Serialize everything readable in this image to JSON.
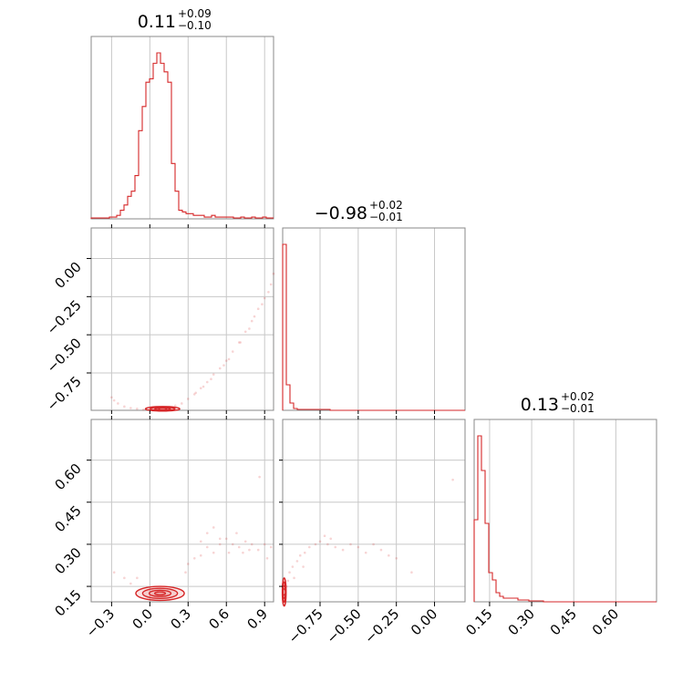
{
  "chart_data": {
    "type": "corner",
    "color": "#d62728",
    "grid": true,
    "parameters": [
      {
        "title_value": "0.11",
        "title_plus": "+0.09",
        "title_minus": "−0.10",
        "range": [
          -0.46,
          0.97
        ],
        "ticks": [
          "−0.3",
          "0.0",
          "0.3",
          "0.6",
          "0.9"
        ],
        "tick_values": [
          -0.3,
          0.0,
          0.3,
          0.6,
          0.9
        ],
        "grid_values": [
          -0.3,
          0.0,
          0.3,
          0.6,
          0.9
        ]
      },
      {
        "title_value": "−0.98",
        "title_plus": "+0.02",
        "title_minus": "−0.01",
        "range": [
          -0.995,
          0.2
        ],
        "ticks": [
          "−0.75",
          "−0.50",
          "−0.25",
          "0.00"
        ],
        "tick_values": [
          -0.75,
          -0.5,
          -0.25,
          0.0
        ],
        "y_ticks": [
          "0.00",
          "−0.25",
          "−0.50",
          "−0.75"
        ],
        "y_tick_values": [
          0.0,
          -0.25,
          -0.5,
          -0.75
        ],
        "grid_values": [
          -0.75,
          -0.5,
          -0.25,
          0.0
        ]
      },
      {
        "title_value": "0.13",
        "title_plus": "+0.02",
        "title_minus": "−0.01",
        "range": [
          0.095,
          0.745
        ],
        "ticks": [
          "0.15",
          "0.30",
          "0.45",
          "0.60"
        ],
        "tick_values": [
          0.15,
          0.3,
          0.45,
          0.6
        ],
        "y_ticks": [
          "0.60",
          "0.45",
          "0.30",
          "0.15"
        ],
        "y_tick_values": [
          0.6,
          0.45,
          0.3,
          0.15
        ],
        "grid_values": [
          0.15,
          0.3,
          0.45,
          0.6
        ]
      }
    ],
    "histograms": [
      {
        "param": 0,
        "bin_start": -0.46,
        "bin_width": 0.0286,
        "counts": [
          0.005,
          0.005,
          0.005,
          0.005,
          0.005,
          0.01,
          0.01,
          0.02,
          0.05,
          0.08,
          0.13,
          0.16,
          0.25,
          0.51,
          0.65,
          0.79,
          0.81,
          0.9,
          0.96,
          0.9,
          0.85,
          0.79,
          0.32,
          0.16,
          0.05,
          0.04,
          0.03,
          0.03,
          0.02,
          0.02,
          0.02,
          0.01,
          0.01,
          0.02,
          0.01,
          0.01,
          0.01,
          0.01,
          0.01,
          0.005,
          0.005,
          0.01,
          0.005,
          0.005,
          0.01,
          0.005,
          0.005,
          0.01,
          0.005,
          0.005
        ]
      },
      {
        "param": 1,
        "bin_start": -0.995,
        "bin_width": 0.0239,
        "counts": [
          0.91,
          0.14,
          0.04,
          0.01,
          0.005,
          0.005,
          0.005,
          0.005,
          0.005,
          0.005,
          0.005,
          0.005,
          0.005,
          0,
          0,
          0,
          0,
          0,
          0,
          0,
          0,
          0,
          0,
          0,
          0,
          0,
          0,
          0,
          0,
          0,
          0,
          0,
          0,
          0,
          0,
          0,
          0,
          0,
          0,
          0,
          0,
          0,
          0,
          0,
          0,
          0,
          0,
          0,
          0,
          0
        ]
      },
      {
        "param": 2,
        "bin_start": 0.095,
        "bin_width": 0.013,
        "counts": [
          0.45,
          0.91,
          0.72,
          0.43,
          0.16,
          0.12,
          0.05,
          0.03,
          0.02,
          0.02,
          0.02,
          0.02,
          0.01,
          0.01,
          0.01,
          0.005,
          0.005,
          0.005,
          0.005,
          0,
          0,
          0,
          0,
          0,
          0,
          0,
          0,
          0,
          0,
          0,
          0,
          0,
          0,
          0,
          0,
          0,
          0,
          0,
          0,
          0,
          0,
          0,
          0,
          0,
          0,
          0,
          0,
          0,
          0,
          0
        ]
      }
    ],
    "scatter_2d": [
      {
        "x_param": 0,
        "y_param": 1,
        "points": [
          [
            -0.3,
            -0.91
          ],
          [
            -0.28,
            -0.93
          ],
          [
            -0.25,
            -0.95
          ],
          [
            -0.2,
            -0.97
          ],
          [
            -0.15,
            -0.98
          ],
          [
            -0.1,
            -0.985
          ],
          [
            -0.05,
            -0.99
          ],
          [
            0.0,
            -0.99
          ],
          [
            0.05,
            -0.985
          ],
          [
            0.1,
            -0.98
          ],
          [
            0.15,
            -0.975
          ],
          [
            0.2,
            -0.965
          ],
          [
            0.25,
            -0.95
          ],
          [
            0.3,
            -0.92
          ],
          [
            0.35,
            -0.89
          ],
          [
            0.4,
            -0.85
          ],
          [
            0.45,
            -0.81
          ],
          [
            0.5,
            -0.76
          ],
          [
            0.55,
            -0.72
          ],
          [
            0.6,
            -0.67
          ],
          [
            0.65,
            -0.61
          ],
          [
            0.7,
            -0.55
          ],
          [
            0.75,
            -0.48
          ],
          [
            0.8,
            -0.41
          ],
          [
            0.85,
            -0.33
          ],
          [
            0.9,
            -0.26
          ],
          [
            0.95,
            -0.17
          ],
          [
            0.97,
            -0.1
          ],
          [
            0.62,
            -0.66
          ],
          [
            0.71,
            -0.55
          ],
          [
            0.82,
            -0.38
          ],
          [
            0.88,
            -0.3
          ],
          [
            0.93,
            -0.22
          ],
          [
            0.78,
            -0.46
          ],
          [
            0.58,
            -0.7
          ],
          [
            0.48,
            -0.79
          ],
          [
            0.36,
            -0.88
          ],
          [
            0.42,
            -0.84
          ]
        ],
        "contour_center": [
          0.1,
          -0.985
        ],
        "contour_x": [
          -0.05,
          0.22
        ],
        "contour_y": [
          -0.995,
          -0.965
        ]
      },
      {
        "x_param": 0,
        "y_param": 2,
        "points": [
          [
            -0.28,
            0.2
          ],
          [
            -0.2,
            0.18
          ],
          [
            -0.15,
            0.16
          ],
          [
            0.3,
            0.23
          ],
          [
            0.35,
            0.25
          ],
          [
            0.4,
            0.26
          ],
          [
            0.45,
            0.29
          ],
          [
            0.5,
            0.27
          ],
          [
            0.55,
            0.3
          ],
          [
            0.6,
            0.32
          ],
          [
            0.65,
            0.3
          ],
          [
            0.7,
            0.29
          ],
          [
            0.75,
            0.31
          ],
          [
            0.8,
            0.3
          ],
          [
            0.85,
            0.28
          ],
          [
            0.9,
            0.3
          ],
          [
            0.95,
            0.29
          ],
          [
            0.45,
            0.34
          ],
          [
            0.55,
            0.32
          ],
          [
            0.68,
            0.34
          ],
          [
            0.86,
            0.54
          ],
          [
            0.4,
            0.31
          ],
          [
            0.62,
            0.27
          ],
          [
            0.73,
            0.27
          ],
          [
            0.28,
            0.2
          ],
          [
            -0.1,
            0.18
          ],
          [
            0.5,
            0.36
          ],
          [
            0.78,
            0.28
          ],
          [
            0.92,
            0.25
          ]
        ],
        "contour_center": [
          0.08,
          0.125
        ],
        "contour_x": [
          -0.1,
          0.28
        ],
        "contour_y": [
          0.11,
          0.16
        ]
      },
      {
        "x_param": 1,
        "y_param": 2,
        "points": [
          [
            -0.97,
            0.15
          ],
          [
            -0.96,
            0.17
          ],
          [
            -0.95,
            0.2
          ],
          [
            -0.93,
            0.22
          ],
          [
            -0.9,
            0.24
          ],
          [
            -0.88,
            0.26
          ],
          [
            -0.85,
            0.27
          ],
          [
            -0.82,
            0.29
          ],
          [
            -0.78,
            0.3
          ],
          [
            -0.75,
            0.31
          ],
          [
            -0.7,
            0.3
          ],
          [
            -0.65,
            0.29
          ],
          [
            -0.6,
            0.28
          ],
          [
            -0.55,
            0.3
          ],
          [
            -0.5,
            0.29
          ],
          [
            -0.45,
            0.27
          ],
          [
            -0.4,
            0.3
          ],
          [
            -0.35,
            0.28
          ],
          [
            -0.3,
            0.26
          ],
          [
            -0.25,
            0.25
          ],
          [
            -0.15,
            0.2
          ],
          [
            0.12,
            0.53
          ],
          [
            -0.72,
            0.33
          ],
          [
            -0.68,
            0.32
          ],
          [
            -0.86,
            0.22
          ],
          [
            -0.92,
            0.18
          ]
        ],
        "contour_center": [
          -0.985,
          0.13
        ],
        "contour_x": [
          -0.995,
          -0.97
        ],
        "contour_y": [
          0.1,
          0.2
        ]
      }
    ]
  }
}
